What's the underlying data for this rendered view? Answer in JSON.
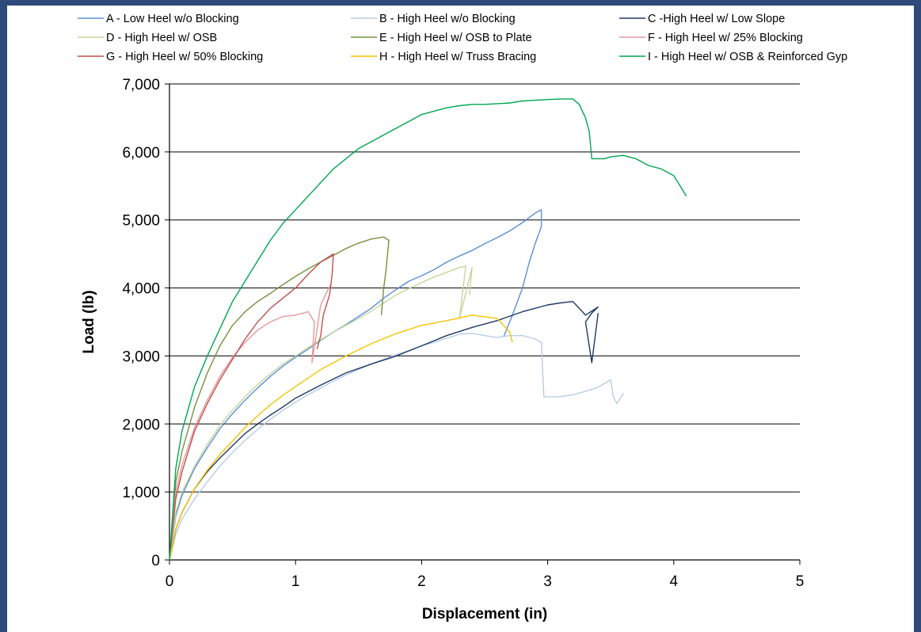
{
  "chart_data": {
    "type": "line",
    "xlabel": "Displacement (in)",
    "ylabel": "Load (lb)",
    "xlim": [
      0,
      5
    ],
    "ylim": [
      0,
      7000
    ],
    "x_ticks": [
      "0",
      "1",
      "2",
      "3",
      "4",
      "5"
    ],
    "y_ticks": [
      "0",
      "1,000",
      "2,000",
      "3,000",
      "4,000",
      "5,000",
      "6,000",
      "7,000"
    ],
    "grid": "horizontal",
    "legend_position": "top",
    "series": [
      {
        "name": "A - Low Heel w/o Blocking",
        "color": "#5b8fd4",
        "points": [
          [
            0,
            0
          ],
          [
            0.05,
            650
          ],
          [
            0.1,
            950
          ],
          [
            0.2,
            1350
          ],
          [
            0.3,
            1650
          ],
          [
            0.4,
            1930
          ],
          [
            0.5,
            2150
          ],
          [
            0.6,
            2350
          ],
          [
            0.7,
            2530
          ],
          [
            0.8,
            2700
          ],
          [
            0.9,
            2850
          ],
          [
            1.0,
            2980
          ],
          [
            1.1,
            3100
          ],
          [
            1.2,
            3230
          ],
          [
            1.3,
            3350
          ],
          [
            1.4,
            3460
          ],
          [
            1.5,
            3580
          ],
          [
            1.6,
            3700
          ],
          [
            1.7,
            3850
          ],
          [
            1.8,
            3980
          ],
          [
            1.9,
            4100
          ],
          [
            2.0,
            4180
          ],
          [
            2.1,
            4270
          ],
          [
            2.2,
            4380
          ],
          [
            2.3,
            4470
          ],
          [
            2.4,
            4550
          ],
          [
            2.5,
            4650
          ],
          [
            2.6,
            4740
          ],
          [
            2.7,
            4840
          ],
          [
            2.8,
            4960
          ],
          [
            2.9,
            5100
          ],
          [
            2.95,
            5150
          ],
          [
            2.95,
            4900
          ],
          [
            2.9,
            4650
          ],
          [
            2.85,
            4350
          ],
          [
            2.8,
            4000
          ],
          [
            2.72,
            3600
          ],
          [
            2.65,
            3280
          ]
        ]
      },
      {
        "name": "B - High Heel w/o Blocking",
        "color": "#b8cce4",
        "points": [
          [
            0,
            0
          ],
          [
            0.05,
            380
          ],
          [
            0.1,
            600
          ],
          [
            0.2,
            900
          ],
          [
            0.3,
            1150
          ],
          [
            0.4,
            1380
          ],
          [
            0.5,
            1580
          ],
          [
            0.6,
            1760
          ],
          [
            0.7,
            1920
          ],
          [
            0.8,
            2070
          ],
          [
            0.9,
            2200
          ],
          [
            1.0,
            2320
          ],
          [
            1.1,
            2430
          ],
          [
            1.2,
            2530
          ],
          [
            1.3,
            2630
          ],
          [
            1.4,
            2720
          ],
          [
            1.5,
            2800
          ],
          [
            1.6,
            2880
          ],
          [
            1.7,
            2950
          ],
          [
            1.8,
            3020
          ],
          [
            1.9,
            3080
          ],
          [
            2.0,
            3150
          ],
          [
            2.1,
            3200
          ],
          [
            2.2,
            3260
          ],
          [
            2.3,
            3320
          ],
          [
            2.4,
            3330
          ],
          [
            2.5,
            3300
          ],
          [
            2.6,
            3270
          ],
          [
            2.7,
            3300
          ],
          [
            2.8,
            3300
          ],
          [
            2.9,
            3250
          ],
          [
            2.95,
            3200
          ],
          [
            2.97,
            2400
          ],
          [
            3.1,
            2400
          ],
          [
            3.2,
            2430
          ],
          [
            3.3,
            2480
          ],
          [
            3.4,
            2540
          ],
          [
            3.5,
            2650
          ],
          [
            3.52,
            2400
          ],
          [
            3.55,
            2300
          ],
          [
            3.6,
            2450
          ]
        ]
      },
      {
        "name": "C -High Heel w/ Low Slope",
        "color": "#1f3864",
        "points": [
          [
            0,
            0
          ],
          [
            0.05,
            450
          ],
          [
            0.1,
            700
          ],
          [
            0.2,
            1050
          ],
          [
            0.3,
            1300
          ],
          [
            0.4,
            1500
          ],
          [
            0.5,
            1680
          ],
          [
            0.6,
            1860
          ],
          [
            0.7,
            2000
          ],
          [
            0.8,
            2130
          ],
          [
            0.9,
            2250
          ],
          [
            1.0,
            2380
          ],
          [
            1.2,
            2570
          ],
          [
            1.4,
            2750
          ],
          [
            1.6,
            2880
          ],
          [
            1.8,
            3000
          ],
          [
            2.0,
            3150
          ],
          [
            2.2,
            3300
          ],
          [
            2.4,
            3420
          ],
          [
            2.6,
            3520
          ],
          [
            2.8,
            3650
          ],
          [
            3.0,
            3750
          ],
          [
            3.1,
            3780
          ],
          [
            3.2,
            3800
          ],
          [
            3.3,
            3600
          ],
          [
            3.4,
            3720
          ],
          [
            3.35,
            3630
          ],
          [
            3.3,
            3500
          ],
          [
            3.35,
            2900
          ],
          [
            3.4,
            3630
          ]
        ]
      },
      {
        "name": "D - High Heel w/ OSB",
        "color": "#c4d79b",
        "points": [
          [
            0,
            0
          ],
          [
            0.05,
            700
          ],
          [
            0.1,
            1000
          ],
          [
            0.2,
            1380
          ],
          [
            0.3,
            1700
          ],
          [
            0.4,
            1980
          ],
          [
            0.5,
            2200
          ],
          [
            0.6,
            2400
          ],
          [
            0.7,
            2580
          ],
          [
            0.8,
            2740
          ],
          [
            0.9,
            2880
          ],
          [
            1.0,
            3000
          ],
          [
            1.1,
            3120
          ],
          [
            1.2,
            3240
          ],
          [
            1.3,
            3350
          ],
          [
            1.4,
            3450
          ],
          [
            1.5,
            3550
          ],
          [
            1.6,
            3660
          ],
          [
            1.7,
            3780
          ],
          [
            1.8,
            3900
          ],
          [
            1.9,
            3990
          ],
          [
            2.0,
            4080
          ],
          [
            2.1,
            4160
          ],
          [
            2.2,
            4230
          ],
          [
            2.3,
            4300
          ],
          [
            2.35,
            4320
          ],
          [
            2.3,
            3550
          ],
          [
            2.4,
            4300
          ],
          [
            2.38,
            3900
          ]
        ]
      },
      {
        "name": "E - High Heel w/ OSB to Plate",
        "color": "#76923c",
        "points": [
          [
            0,
            0
          ],
          [
            0.05,
            1150
          ],
          [
            0.1,
            1600
          ],
          [
            0.2,
            2250
          ],
          [
            0.3,
            2750
          ],
          [
            0.4,
            3150
          ],
          [
            0.5,
            3450
          ],
          [
            0.6,
            3650
          ],
          [
            0.7,
            3800
          ],
          [
            0.8,
            3920
          ],
          [
            0.9,
            4050
          ],
          [
            1.0,
            4170
          ],
          [
            1.1,
            4280
          ],
          [
            1.2,
            4380
          ],
          [
            1.3,
            4480
          ],
          [
            1.4,
            4580
          ],
          [
            1.5,
            4660
          ],
          [
            1.6,
            4720
          ],
          [
            1.7,
            4750
          ],
          [
            1.74,
            4700
          ],
          [
            1.72,
            4300
          ],
          [
            1.7,
            4000
          ],
          [
            1.68,
            3600
          ]
        ]
      },
      {
        "name": "F - High Heel w/ 25% Blocking",
        "color": "#e6999a",
        "points": [
          [
            0,
            0
          ],
          [
            0.05,
            1000
          ],
          [
            0.1,
            1400
          ],
          [
            0.2,
            1950
          ],
          [
            0.3,
            2350
          ],
          [
            0.4,
            2700
          ],
          [
            0.5,
            2980
          ],
          [
            0.6,
            3200
          ],
          [
            0.7,
            3380
          ],
          [
            0.8,
            3500
          ],
          [
            0.9,
            3580
          ],
          [
            1.0,
            3600
          ],
          [
            1.1,
            3650
          ],
          [
            1.15,
            3500
          ],
          [
            1.13,
            2900
          ],
          [
            1.2,
            3750
          ],
          [
            1.25,
            3950
          ],
          [
            1.28,
            4050
          ]
        ]
      },
      {
        "name": "G - High Heel w/ 50% Blocking",
        "color": "#c0504d",
        "points": [
          [
            0,
            0
          ],
          [
            0.05,
            900
          ],
          [
            0.1,
            1300
          ],
          [
            0.2,
            1900
          ],
          [
            0.3,
            2300
          ],
          [
            0.4,
            2650
          ],
          [
            0.5,
            2950
          ],
          [
            0.6,
            3250
          ],
          [
            0.7,
            3500
          ],
          [
            0.8,
            3700
          ],
          [
            0.9,
            3850
          ],
          [
            1.0,
            4000
          ],
          [
            1.1,
            4200
          ],
          [
            1.2,
            4380
          ],
          [
            1.3,
            4500
          ],
          [
            1.3,
            4500
          ],
          [
            1.29,
            4200
          ],
          [
            1.27,
            3900
          ],
          [
            1.22,
            3600
          ],
          [
            1.2,
            3300
          ],
          [
            1.17,
            3100
          ]
        ]
      },
      {
        "name": "H - High Heel w/ Truss Bracing",
        "color": "#f5c400",
        "points": [
          [
            0,
            0
          ],
          [
            0.05,
            450
          ],
          [
            0.1,
            700
          ],
          [
            0.2,
            1050
          ],
          [
            0.3,
            1320
          ],
          [
            0.4,
            1550
          ],
          [
            0.5,
            1750
          ],
          [
            0.6,
            1950
          ],
          [
            0.7,
            2120
          ],
          [
            0.8,
            2280
          ],
          [
            0.9,
            2420
          ],
          [
            1.0,
            2550
          ],
          [
            1.2,
            2800
          ],
          [
            1.4,
            3000
          ],
          [
            1.6,
            3180
          ],
          [
            1.8,
            3330
          ],
          [
            2.0,
            3450
          ],
          [
            2.2,
            3520
          ],
          [
            2.4,
            3600
          ],
          [
            2.6,
            3550
          ],
          [
            2.65,
            3450
          ],
          [
            2.7,
            3350
          ],
          [
            2.72,
            3200
          ]
        ]
      },
      {
        "name": "I - High Heel w/ OSB & Reinforced Gyp",
        "color": "#00a651",
        "points": [
          [
            0,
            0
          ],
          [
            0.05,
            1350
          ],
          [
            0.1,
            1900
          ],
          [
            0.2,
            2550
          ],
          [
            0.3,
            3000
          ],
          [
            0.4,
            3400
          ],
          [
            0.5,
            3800
          ],
          [
            0.6,
            4100
          ],
          [
            0.7,
            4400
          ],
          [
            0.8,
            4700
          ],
          [
            0.9,
            4950
          ],
          [
            1.0,
            5150
          ],
          [
            1.1,
            5350
          ],
          [
            1.2,
            5550
          ],
          [
            1.3,
            5750
          ],
          [
            1.4,
            5900
          ],
          [
            1.5,
            6050
          ],
          [
            1.6,
            6150
          ],
          [
            1.7,
            6250
          ],
          [
            1.8,
            6350
          ],
          [
            1.9,
            6450
          ],
          [
            2.0,
            6550
          ],
          [
            2.1,
            6600
          ],
          [
            2.2,
            6650
          ],
          [
            2.3,
            6680
          ],
          [
            2.4,
            6700
          ],
          [
            2.5,
            6700
          ],
          [
            2.6,
            6710
          ],
          [
            2.7,
            6720
          ],
          [
            2.8,
            6750
          ],
          [
            2.9,
            6760
          ],
          [
            3.0,
            6770
          ],
          [
            3.1,
            6780
          ],
          [
            3.2,
            6780
          ],
          [
            3.25,
            6700
          ],
          [
            3.3,
            6500
          ],
          [
            3.33,
            6300
          ],
          [
            3.35,
            5900
          ],
          [
            3.45,
            5900
          ],
          [
            3.5,
            5930
          ],
          [
            3.6,
            5950
          ],
          [
            3.7,
            5900
          ],
          [
            3.8,
            5800
          ],
          [
            3.9,
            5750
          ],
          [
            4.0,
            5650
          ],
          [
            4.05,
            5500
          ],
          [
            4.1,
            5350
          ]
        ]
      }
    ]
  }
}
